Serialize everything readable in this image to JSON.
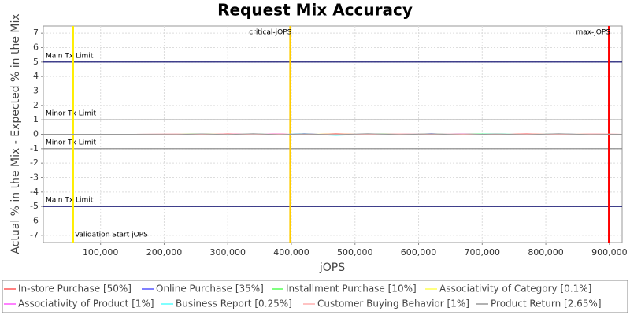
{
  "chart_data": {
    "type": "line",
    "title": "Request Mix Accuracy",
    "x_label": "jOPS",
    "y_label": "Actual % in the Mix - Expected % in the Mix",
    "xlim": [
      10000,
      920000
    ],
    "xticks": [
      {
        "value": 100000,
        "label": "100,000"
      },
      {
        "value": 200000,
        "label": "200,000"
      },
      {
        "value": 300000,
        "label": "300,000"
      },
      {
        "value": 400000,
        "label": "400,000"
      },
      {
        "value": 500000,
        "label": "500,000"
      },
      {
        "value": 600000,
        "label": "600,000"
      },
      {
        "value": 700000,
        "label": "700,000"
      },
      {
        "value": 800000,
        "label": "800,000"
      },
      {
        "value": 900000,
        "label": "900,000"
      }
    ],
    "ylim": [
      -7.5,
      7.5
    ],
    "yticks": [
      -7,
      -6,
      -5,
      -4,
      -3,
      -2,
      -1,
      0,
      1,
      2,
      3,
      4,
      5,
      6,
      7
    ],
    "grid": true,
    "x": [
      10000,
      80000,
      150000,
      220000,
      260000,
      300000,
      340000,
      380000,
      420000,
      470000,
      520000,
      570000,
      620000,
      670000,
      720000,
      770000,
      820000,
      870000,
      920000
    ],
    "series": [
      {
        "name": "In-store Purchase [50%]",
        "color": "#ff5555",
        "values": [
          0,
          0,
          0,
          0.01,
          -0.03,
          0.04,
          -0.02,
          0.03,
          -0.04,
          0.05,
          -0.03,
          0.02,
          -0.04,
          0.03,
          -0.02,
          0.04,
          -0.03,
          0.02,
          0
        ]
      },
      {
        "name": "Online Purchase [35%]",
        "color": "#5555ff",
        "values": [
          0,
          0,
          0,
          -0.01,
          0.03,
          -0.04,
          0.02,
          -0.03,
          0.04,
          -0.05,
          0.03,
          -0.02,
          0.04,
          -0.03,
          0.02,
          -0.04,
          0.03,
          -0.02,
          0
        ]
      },
      {
        "name": "Installment Purchase [10%]",
        "color": "#55ff55",
        "values": [
          0,
          0,
          0,
          0.01,
          0.02,
          -0.03,
          0.03,
          -0.02,
          0.02,
          -0.06,
          0.02,
          0.03,
          -0.02,
          0.02,
          0.03,
          -0.02,
          0.02,
          -0.03,
          0
        ]
      },
      {
        "name": "Associativity of Category [0.1%]",
        "color": "#ffff55",
        "values": [
          0,
          0,
          0,
          0,
          0.02,
          0,
          -0.02,
          0.01,
          0,
          0.02,
          -0.01,
          0,
          0.02,
          0,
          -0.01,
          0.01,
          0,
          0.01,
          0
        ]
      },
      {
        "name": "Associativity of Product [1%]",
        "color": "#ff55ff",
        "values": [
          0,
          0,
          0,
          0.01,
          -0.02,
          0.02,
          -0.01,
          0.02,
          -0.02,
          0.01,
          -0.02,
          0.02,
          -0.01,
          0.02,
          -0.02,
          0.01,
          -0.02,
          0.01,
          0
        ]
      },
      {
        "name": "Business Report [0.25%]",
        "color": "#55ffff",
        "values": [
          0,
          0,
          0,
          -0.01,
          0.01,
          -0.06,
          0.01,
          -0.01,
          0.02,
          -0.08,
          0.01,
          -0.02,
          0.01,
          -0.01,
          0.02,
          -0.01,
          0.01,
          -0.01,
          0
        ]
      },
      {
        "name": "Customer Buying Behavior [1%]",
        "color": "#ffafaf",
        "values": [
          0,
          0,
          0,
          0.02,
          -0.01,
          0.03,
          -0.02,
          0.01,
          -0.03,
          0.02,
          -0.01,
          0.03,
          -0.02,
          0.01,
          -0.03,
          0.02,
          -0.01,
          0.02,
          0
        ]
      },
      {
        "name": "Product Return [2.65%]",
        "color": "#999999",
        "values": [
          0,
          0,
          0,
          -0.02,
          0.03,
          -0.02,
          0.04,
          -0.03,
          0.02,
          -0.03,
          0.04,
          -0.02,
          0.03,
          -0.04,
          0.02,
          -0.03,
          0.04,
          -0.02,
          0
        ]
      }
    ],
    "h_markers": [
      {
        "label": "Main Tx Limit",
        "value": 5,
        "color": "#000066"
      },
      {
        "label": "Minor Tx Limit",
        "value": 1,
        "color": "#808080"
      },
      {
        "label": "Minor Tx Limit",
        "value": -1,
        "color": "#808080"
      },
      {
        "label": "Main Tx Limit",
        "value": -5,
        "color": "#000066"
      }
    ],
    "v_markers": [
      {
        "label": "Validation Start jOPS",
        "value": 57000,
        "color": "#ffee00"
      },
      {
        "label": "critical-jOPS",
        "value": 398000,
        "color": "#ffcc00"
      },
      {
        "label": "max-jOPS",
        "value": 899000,
        "color": "#ff0000"
      }
    ]
  }
}
